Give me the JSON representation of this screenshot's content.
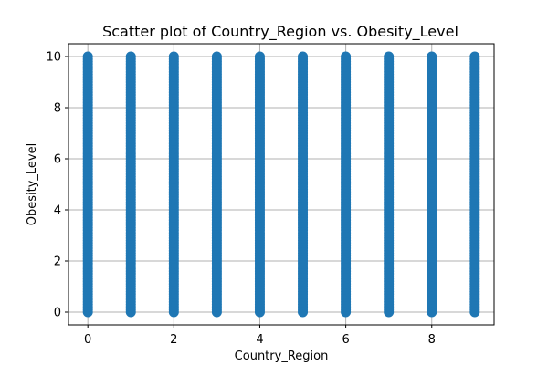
{
  "chart_data": {
    "type": "scatter",
    "title": "Scatter plot of Country_Region vs. Obesity_Level",
    "xlabel": "Country_Region",
    "ylabel": "Obesity_Level",
    "xlim": [
      -0.45,
      9.45
    ],
    "ylim": [
      -0.5,
      10.5
    ],
    "xticks": [
      0,
      2,
      4,
      6,
      8
    ],
    "yticks": [
      0,
      2,
      4,
      6,
      8,
      10
    ],
    "grid": true,
    "legend": "none",
    "series": [
      {
        "color": "#1f77b4",
        "x_values": [
          0,
          1,
          2,
          3,
          4,
          5,
          6,
          7,
          8,
          9
        ],
        "y_range": [
          0,
          10
        ],
        "y_step": 0.1
      }
    ]
  }
}
